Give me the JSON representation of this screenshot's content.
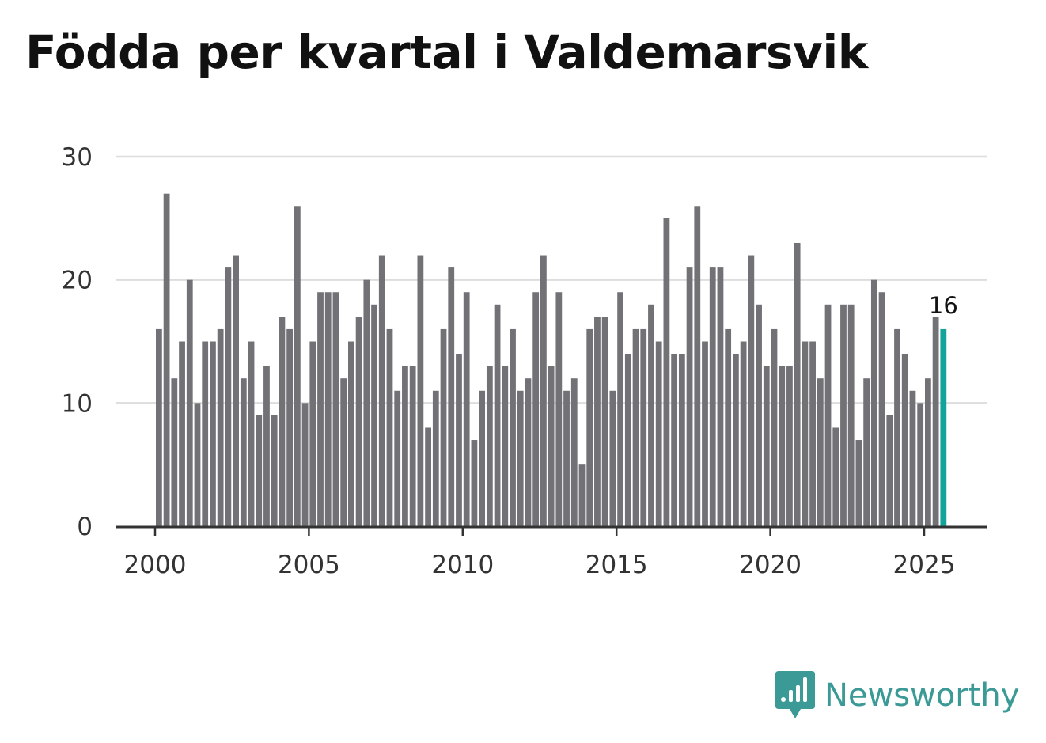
{
  "title": "Födda per kvartal i Valdemarsvik",
  "brand": {
    "name": "Newsworthy",
    "logo_icon": "bar-chart-badge-icon"
  },
  "colors": {
    "bar": "#727176",
    "highlight": "#13a39a",
    "grid": "#dddddd",
    "axis": "#333333",
    "brand": "#3b9a96"
  },
  "chart_data": {
    "type": "bar",
    "title": "Födda per kvartal i Valdemarsvik",
    "xlabel": "",
    "ylabel": "",
    "ylim": [
      0,
      30
    ],
    "yticks": [
      0,
      10,
      20,
      30
    ],
    "xticks": [
      "2000",
      "2005",
      "2010",
      "2015",
      "2020",
      "2025"
    ],
    "grid": true,
    "start_year": 2000,
    "periods_per_year": 4,
    "values": [
      16,
      27,
      12,
      15,
      20,
      10,
      15,
      15,
      16,
      21,
      22,
      12,
      15,
      9,
      13,
      9,
      17,
      16,
      26,
      10,
      15,
      19,
      19,
      19,
      12,
      15,
      17,
      20,
      18,
      22,
      16,
      11,
      13,
      13,
      22,
      8,
      11,
      16,
      21,
      14,
      19,
      7,
      11,
      13,
      18,
      13,
      16,
      11,
      12,
      19,
      22,
      13,
      19,
      11,
      12,
      5,
      16,
      17,
      17,
      11,
      19,
      14,
      16,
      16,
      18,
      15,
      25,
      14,
      14,
      21,
      26,
      15,
      21,
      21,
      16,
      14,
      15,
      22,
      18,
      13,
      16,
      13,
      13,
      23,
      15,
      15,
      12,
      18,
      8,
      18,
      18,
      7,
      12,
      20,
      19,
      9,
      16,
      14,
      11,
      10,
      12,
      17,
      16
    ],
    "highlight_index": 102,
    "highlight_label": "16"
  }
}
